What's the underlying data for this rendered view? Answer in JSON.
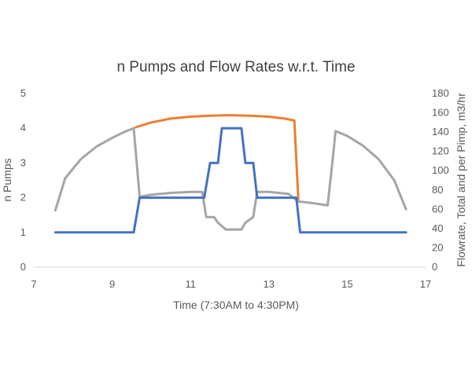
{
  "chart_data": {
    "type": "line",
    "title": "n Pumps and Flow Rates w.r.t. Time",
    "xlabel": "Time (7:30AM to 4:30PM)",
    "ylabel_left": "n Pumps",
    "ylabel_right": "Flowrate, Total and per Pimp, m3/hr",
    "xlim": [
      7,
      17
    ],
    "ylim_left": [
      0,
      5
    ],
    "ylim_right": [
      0,
      180
    ],
    "x_ticks": [
      7,
      9,
      11,
      13,
      15,
      17
    ],
    "y_ticks_left": [
      0,
      1,
      2,
      3,
      4,
      5
    ],
    "y_ticks_right": [
      0,
      20,
      40,
      60,
      80,
      100,
      120,
      140,
      160,
      180
    ],
    "grid": false,
    "legend": "none",
    "series": [
      {
        "axis": "right",
        "color": "#ED7D31",
        "x": [
          9.6,
          10.0,
          10.5,
          11.0,
          11.5,
          12.0,
          12.5,
          13.0,
          13.4,
          13.65,
          13.75
        ],
        "y": [
          145,
          150,
          154,
          156,
          157,
          157.5,
          157,
          156,
          154,
          152,
          70
        ]
      },
      {
        "axis": "right",
        "color": "#A5A5A5",
        "x": [
          7.55,
          7.8,
          8.2,
          8.6,
          9.0,
          9.3,
          9.55,
          9.7,
          10.0,
          10.5,
          11.0,
          11.3,
          11.4,
          11.6,
          11.7,
          11.9,
          12.3,
          12.4,
          12.6,
          12.7,
          13.0,
          13.5,
          13.75,
          14.0,
          14.5,
          14.65,
          14.7,
          15.0,
          15.4,
          15.8,
          16.2,
          16.5
        ],
        "y": [
          59,
          92,
          112,
          125,
          134,
          140,
          144,
          73,
          75,
          77,
          78,
          78,
          52,
          52,
          46,
          39,
          39,
          46,
          52,
          78,
          78,
          76,
          68,
          67,
          64,
          120,
          141,
          136,
          126,
          112,
          90,
          60
        ]
      },
      {
        "axis": "left",
        "color": "#4472C4",
        "x": [
          7.55,
          9.55,
          9.7,
          11.35,
          11.5,
          11.7,
          11.8,
          12.3,
          12.4,
          12.6,
          12.7,
          13.7,
          13.8,
          16.5
        ],
        "y": [
          1,
          1,
          2,
          2,
          3,
          3,
          4,
          4,
          3,
          3,
          2,
          2,
          1,
          1
        ]
      }
    ]
  }
}
